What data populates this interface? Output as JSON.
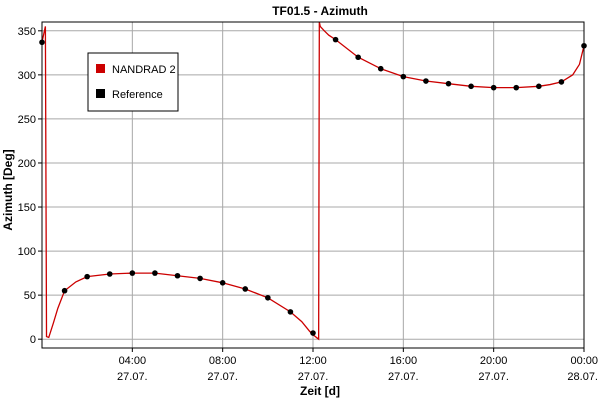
{
  "chart_data": {
    "type": "line",
    "title": "TF01.5 - Azimuth",
    "xlabel": "Zeit [d]",
    "ylabel": "Azimuth [Deg]",
    "xlim_hours": [
      0,
      24
    ],
    "ylim": [
      -10,
      360
    ],
    "grid": true,
    "legend_placement": "top-left",
    "x_ticks": [
      {
        "hour": 4,
        "time": "04:00",
        "date": "27.07."
      },
      {
        "hour": 8,
        "time": "08:00",
        "date": "27.07."
      },
      {
        "hour": 12,
        "time": "12:00",
        "date": "27.07."
      },
      {
        "hour": 16,
        "time": "16:00",
        "date": "27.07."
      },
      {
        "hour": 20,
        "time": "20:00",
        "date": "27.07."
      },
      {
        "hour": 24,
        "time": "00:00",
        "date": "28.07."
      }
    ],
    "y_ticks": [
      0,
      50,
      100,
      150,
      200,
      250,
      300,
      350
    ],
    "series": [
      {
        "name": "NANDRAD 2",
        "color": "#cc0000",
        "style": "line",
        "x": [
          0,
          0.15,
          0.2,
          0.3,
          0.5,
          0.7,
          1,
          1.5,
          2,
          3,
          4,
          5,
          6,
          7,
          8,
          9,
          10,
          11,
          11.5,
          11.85,
          12,
          12.1,
          12.2,
          12.25,
          12.28,
          12.32,
          12.5,
          12.7,
          13,
          14,
          15,
          16,
          17,
          18,
          19,
          20,
          21,
          22,
          22.5,
          23,
          23.5,
          23.8,
          24
        ],
        "y": [
          337,
          355,
          3,
          2,
          18,
          35,
          55,
          65,
          71,
          74,
          75,
          75,
          72,
          69,
          64,
          57,
          47,
          31,
          20,
          9,
          5,
          3,
          1,
          0,
          360,
          355,
          350,
          345,
          340,
          320,
          307,
          298,
          293,
          290,
          287,
          285.5,
          285.5,
          287,
          289,
          292,
          300,
          312,
          333
        ]
      },
      {
        "name": "Reference",
        "color": "#000000",
        "style": "markers",
        "x": [
          0,
          1,
          2,
          3,
          4,
          5,
          6,
          7,
          8,
          9,
          10,
          11,
          12,
          13,
          14,
          15,
          16,
          17,
          18,
          19,
          20,
          21,
          22,
          23,
          24
        ],
        "y": [
          337,
          55,
          71,
          74,
          75,
          75,
          72,
          69,
          64,
          57,
          47,
          31,
          7,
          340,
          320,
          307,
          298,
          293,
          290,
          287,
          285.5,
          285.5,
          287,
          292,
          333
        ]
      }
    ]
  }
}
